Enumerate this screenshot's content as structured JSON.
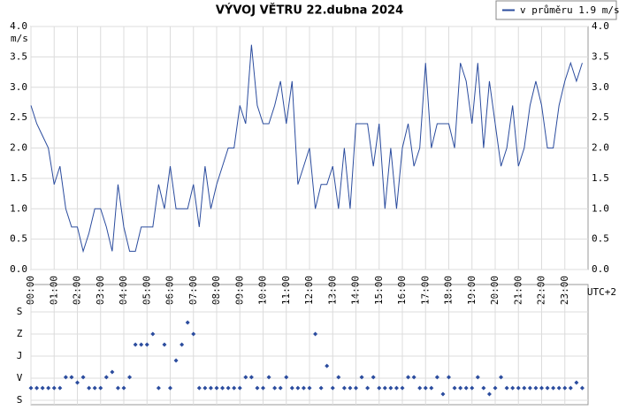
{
  "chart_data": [
    {
      "type": "line",
      "title": "VÝVOJ VĚTRU  22.dubna 2024",
      "ylabel": "m/s",
      "xlabel": "UTC+2",
      "xlim": [
        0,
        24
      ],
      "ylim": [
        0,
        4
      ],
      "yticks": [
        {
          "value": 0,
          "label": "0.0"
        },
        0.5,
        {
          "value": 1,
          "label": "1.0"
        },
        1.5,
        {
          "value": 2,
          "label": "2.0"
        },
        2.5,
        {
          "value": 3,
          "label": "3.0"
        },
        3.5,
        {
          "value": 4,
          "label": "4.0"
        }
      ],
      "xticks": [
        {
          "value": 0,
          "label": "00:00"
        },
        {
          "value": 1,
          "label": "01:00"
        },
        {
          "value": 2,
          "label": "02:00"
        },
        {
          "value": 3,
          "label": "03:00"
        },
        {
          "value": 4,
          "label": "04:00"
        },
        {
          "value": 5,
          "label": "05:00"
        },
        {
          "value": 6,
          "label": "06:00"
        },
        {
          "value": 7,
          "label": "07:00"
        },
        {
          "value": 8,
          "label": "08:00"
        },
        {
          "value": 9,
          "label": "09:00"
        },
        {
          "value": 10,
          "label": "10:00"
        },
        {
          "value": 11,
          "label": "11:00"
        },
        {
          "value": 12,
          "label": "12:00"
        },
        {
          "value": 13,
          "label": "13:00"
        },
        {
          "value": 14,
          "label": "14:00"
        },
        {
          "value": 15,
          "label": "15:00"
        },
        {
          "value": 16,
          "label": "16:00"
        },
        {
          "value": 17,
          "label": "17:00"
        },
        {
          "value": 18,
          "label": "18:00"
        },
        {
          "value": 19,
          "label": "19:00"
        },
        {
          "value": 20,
          "label": "20:00"
        },
        {
          "value": 21,
          "label": "21:00"
        },
        {
          "value": 22,
          "label": "22:00"
        },
        {
          "value": 23,
          "label": "23:00"
        }
      ],
      "grid": true,
      "legend": "top-right",
      "x": [
        0,
        0.25,
        0.5,
        0.75,
        1,
        1.25,
        1.5,
        1.75,
        2,
        2.25,
        2.5,
        2.75,
        3,
        3.25,
        3.5,
        3.75,
        4,
        4.25,
        4.5,
        4.75,
        5,
        5.25,
        5.5,
        5.75,
        6,
        6.25,
        6.5,
        6.75,
        7,
        7.25,
        7.5,
        7.75,
        8,
        8.25,
        8.5,
        8.75,
        9,
        9.25,
        9.5,
        9.75,
        10,
        10.25,
        10.5,
        10.75,
        11,
        11.25,
        11.5,
        11.75,
        12,
        12.25,
        12.5,
        12.75,
        13,
        13.25,
        13.5,
        13.75,
        14,
        14.25,
        14.5,
        14.75,
        15,
        15.25,
        15.5,
        15.75,
        16,
        16.25,
        16.5,
        16.75,
        17,
        17.25,
        17.5,
        17.75,
        18,
        18.25,
        18.5,
        18.75,
        19,
        19.25,
        19.5,
        19.75,
        20,
        20.25,
        20.5,
        20.75,
        21,
        21.25,
        21.5,
        21.75,
        22,
        22.25,
        22.5,
        22.75,
        23,
        23.25,
        23.5,
        23.75
      ],
      "series": [
        {
          "name": "v průměru 1.9 m/s",
          "color": "#2b4c9e",
          "values": [
            2.7,
            2.4,
            2.2,
            2.0,
            1.4,
            1.7,
            1.0,
            0.7,
            0.7,
            0.3,
            0.6,
            1.0,
            1.0,
            0.7,
            0.3,
            1.4,
            0.7,
            0.3,
            0.3,
            0.7,
            0.7,
            0.7,
            1.4,
            1.0,
            1.7,
            1.0,
            1.0,
            1.0,
            1.4,
            0.7,
            1.7,
            1.0,
            1.4,
            1.7,
            2.0,
            2.0,
            2.7,
            2.4,
            3.7,
            2.7,
            2.4,
            2.4,
            2.7,
            3.1,
            2.4,
            3.1,
            1.4,
            1.7,
            2.0,
            1.0,
            1.4,
            1.4,
            1.7,
            1.0,
            2.0,
            1.0,
            2.4,
            2.4,
            2.4,
            1.7,
            2.4,
            1.0,
            2.0,
            1.0,
            2.0,
            2.4,
            1.7,
            2.0,
            3.4,
            2.0,
            2.4,
            2.4,
            2.4,
            2.0,
            3.4,
            3.1,
            2.4,
            3.4,
            2.0,
            3.1,
            2.4,
            1.7,
            2.0,
            2.7,
            1.7,
            2.0,
            2.7,
            3.1,
            2.7,
            2.0,
            2.0,
            2.7,
            3.1,
            3.4,
            3.1,
            3.4
          ]
        }
      ]
    },
    {
      "type": "scatter",
      "xlim": [
        0,
        24
      ],
      "ylim": [
        0,
        360
      ],
      "yticks": [
        {
          "value": 0,
          "label": "S"
        },
        {
          "value": 90,
          "label": "V"
        },
        {
          "value": 180,
          "label": "J"
        },
        {
          "value": 270,
          "label": "Z"
        },
        {
          "value": 360,
          "label": "S"
        }
      ],
      "x": [
        0,
        0.25,
        0.5,
        0.75,
        1,
        1.25,
        1.5,
        1.75,
        2,
        2.25,
        2.5,
        2.75,
        3,
        3.25,
        3.5,
        3.75,
        4,
        4.25,
        4.5,
        4.75,
        5,
        5.25,
        5.5,
        5.75,
        6,
        6.25,
        6.5,
        6.75,
        7,
        7.25,
        7.5,
        7.75,
        8,
        8.25,
        8.5,
        8.75,
        9,
        9.25,
        9.5,
        9.75,
        10,
        10.25,
        10.5,
        10.75,
        11,
        11.25,
        11.5,
        11.75,
        12,
        12.25,
        12.5,
        12.75,
        13,
        13.25,
        13.5,
        13.75,
        14,
        14.25,
        14.5,
        14.75,
        15,
        15.25,
        15.5,
        15.75,
        16,
        16.25,
        16.5,
        16.75,
        17,
        17.25,
        17.5,
        17.75,
        18,
        18.25,
        18.5,
        18.75,
        19,
        19.25,
        19.5,
        19.75,
        20,
        20.25,
        20.5,
        20.75,
        21,
        21.25,
        21.5,
        21.75,
        22,
        22.25,
        22.5,
        22.75,
        23,
        23.25,
        23.5,
        23.75
      ],
      "color": "#2b4c9e",
      "values": [
        50,
        50,
        50,
        50,
        50,
        50,
        94,
        94,
        72,
        94,
        50,
        50,
        50,
        94,
        115,
        50,
        50,
        94,
        227,
        227,
        227,
        270,
        50,
        227,
        50,
        162,
        227,
        317,
        270,
        50,
        50,
        50,
        50,
        50,
        50,
        50,
        50,
        94,
        94,
        50,
        50,
        94,
        50,
        50,
        94,
        50,
        50,
        50,
        50,
        270,
        50,
        140,
        50,
        94,
        50,
        50,
        50,
        94,
        50,
        94,
        50,
        50,
        50,
        50,
        50,
        94,
        94,
        50,
        50,
        50,
        94,
        25,
        94,
        50,
        50,
        50,
        50,
        94,
        50,
        25,
        50,
        94,
        50,
        50,
        50,
        50,
        50,
        50,
        50,
        50,
        50,
        50,
        50,
        50,
        72,
        50
      ]
    }
  ]
}
